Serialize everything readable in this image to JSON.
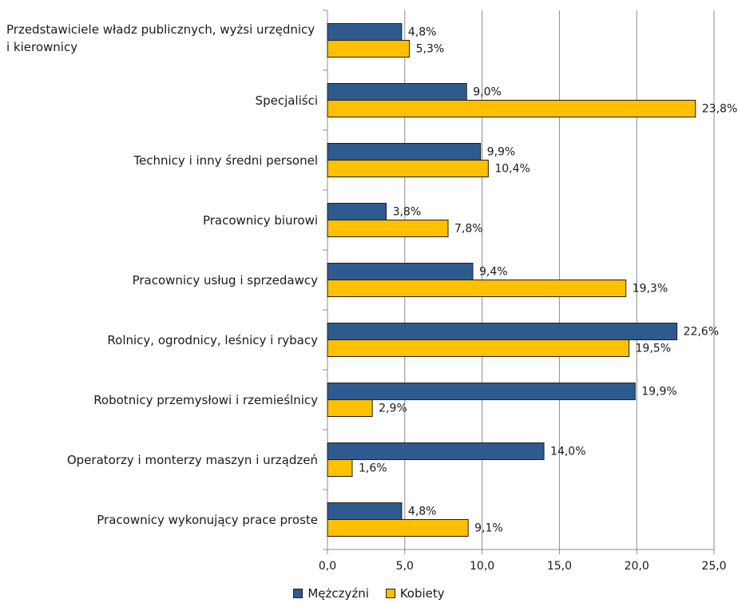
{
  "chart_data": {
    "type": "bar",
    "orientation": "horizontal",
    "categories": [
      "Przedstawiciele władz publicznych, wyżsi urzędnicy i kierownicy",
      "Specjaliści",
      "Technicy i inny średni personel",
      "Pracownicy biurowi",
      "Pracownicy usług i sprzedawcy",
      "Rolnicy, ogrodnicy, leśnicy i rybacy",
      "Robotnicy przemysłowi i rzemieślnicy",
      "Operatorzy i monterzy maszyn i urządzeń",
      "Pracownicy wykonujący prace proste"
    ],
    "series": [
      {
        "name": "Mężczyźni",
        "color": "#2E5A8F",
        "values": [
          4.8,
          9.0,
          9.9,
          3.8,
          9.4,
          22.6,
          19.9,
          14.0,
          4.8
        ],
        "labels": [
          "4,8%",
          "9,0%",
          "9,9%",
          "3,8%",
          "9,4%",
          "22,6%",
          "19,9%",
          "14,0%",
          "4,8%"
        ]
      },
      {
        "name": "Kobiety",
        "color": "#FFC000",
        "values": [
          5.3,
          23.8,
          10.4,
          7.8,
          19.3,
          19.5,
          2.9,
          1.6,
          9.1
        ],
        "labels": [
          "5,3%",
          "23,8%",
          "10,4%",
          "7,8%",
          "19,3%",
          "19,5%",
          "2,9%",
          "1,6%",
          "9,1%"
        ]
      }
    ],
    "xlim": [
      0,
      25
    ],
    "xticks": [
      "0,0",
      "5,0",
      "10,0",
      "15,0",
      "20,0",
      "25,0"
    ],
    "grid": "vertical",
    "legend": "bottom",
    "title": "",
    "xlabel": "",
    "ylabel": ""
  }
}
